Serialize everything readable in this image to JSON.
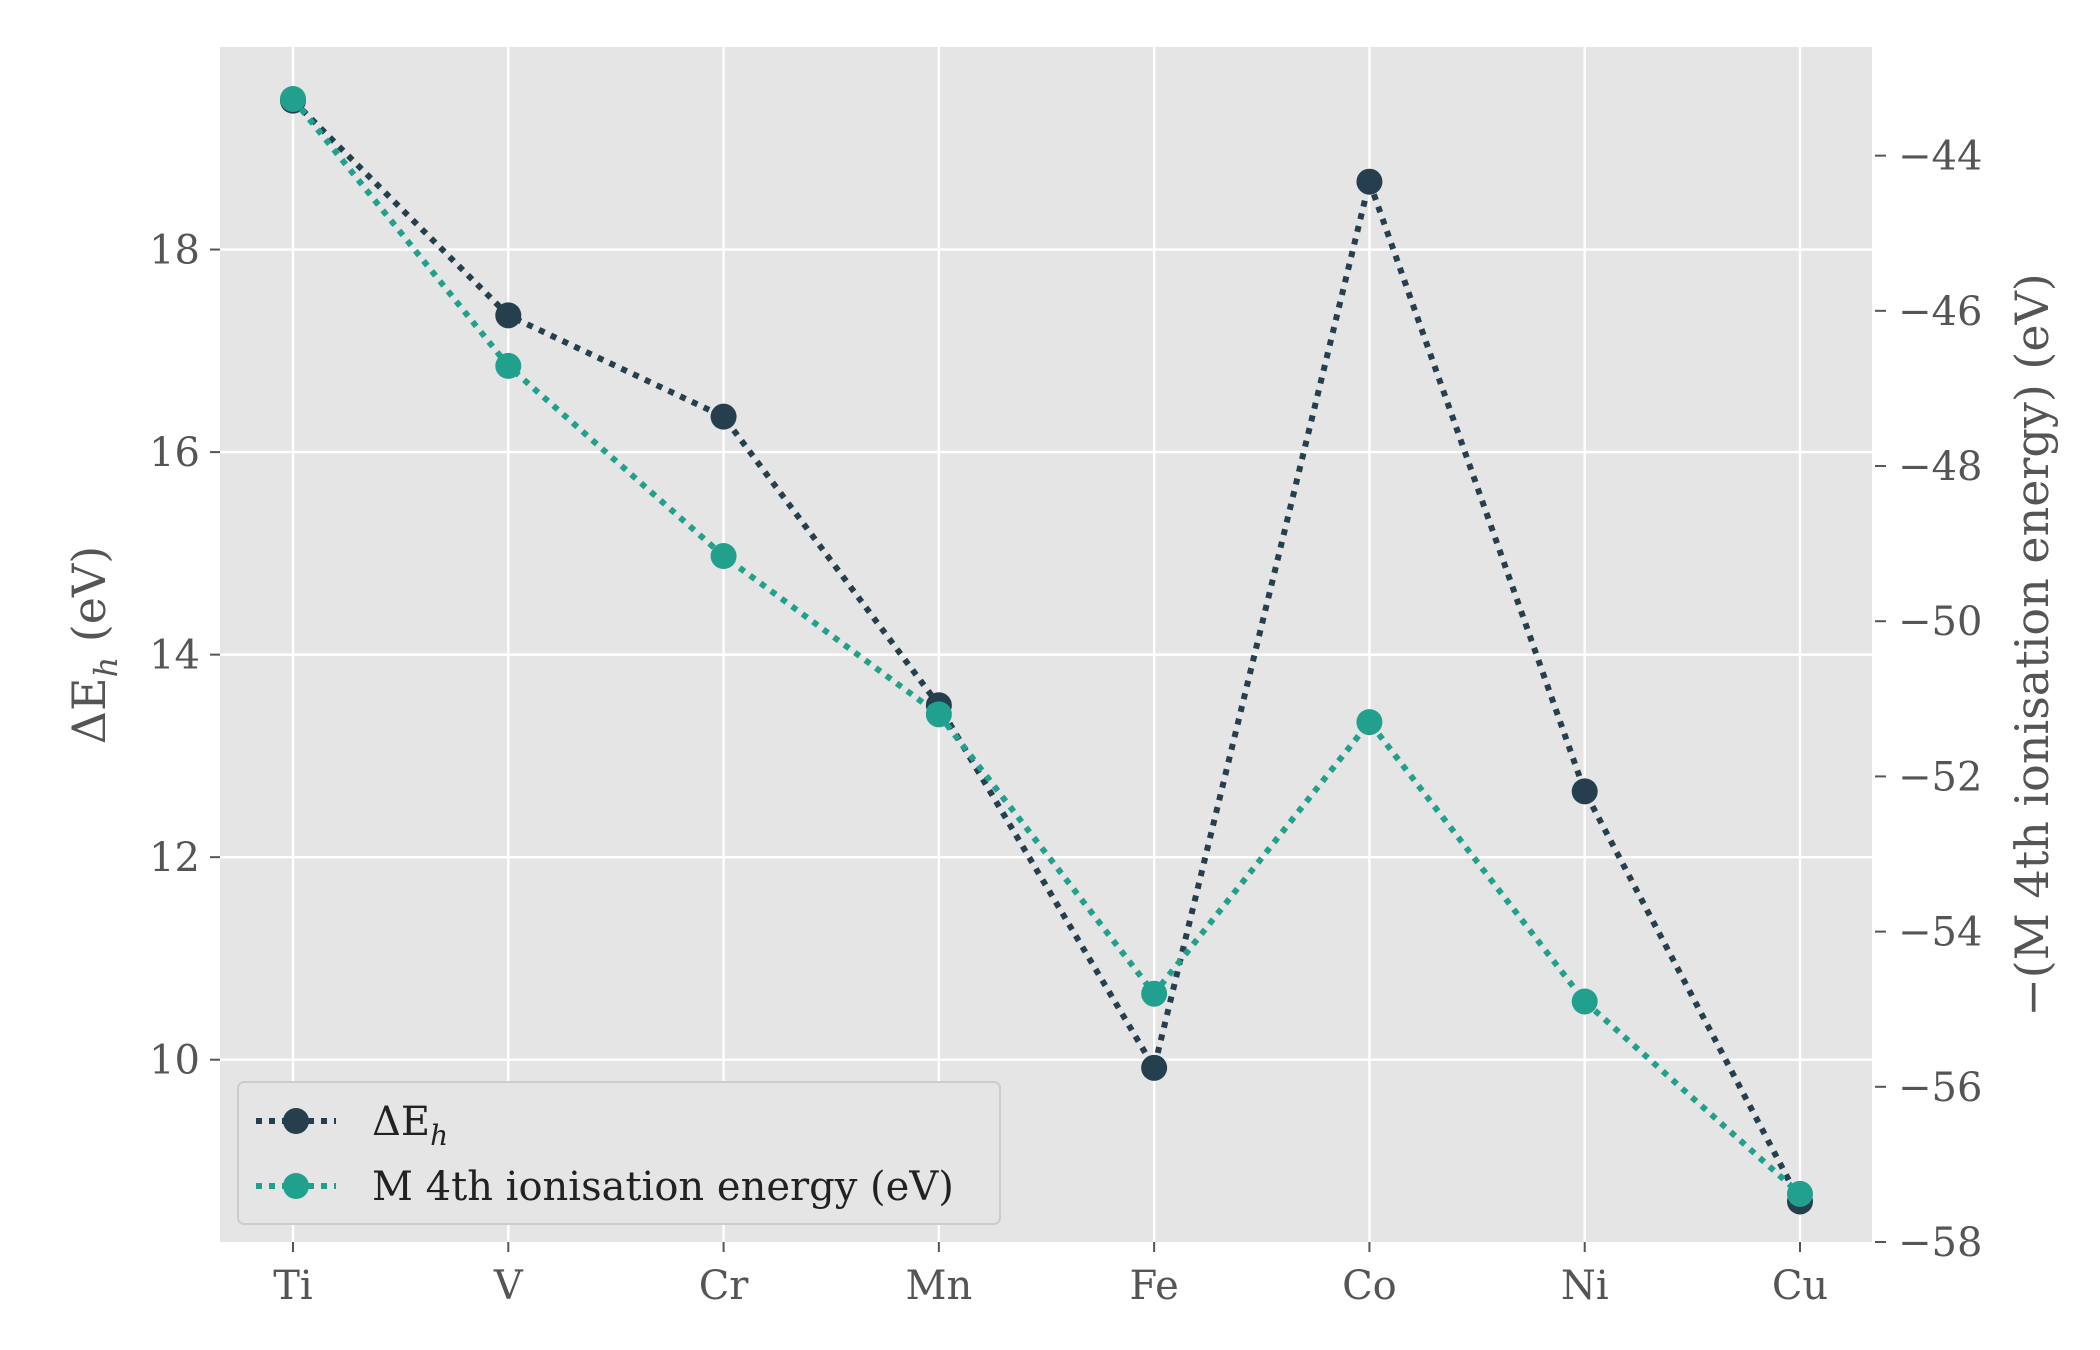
{
  "chart_data": {
    "type": "line",
    "categories": [
      "Ti",
      "V",
      "Cr",
      "Mn",
      "Fe",
      "Co",
      "Ni",
      "Cu"
    ],
    "series": [
      {
        "name": "ΔE_h",
        "name_main": "ΔE",
        "name_sub": "h",
        "axis": "left",
        "color": "#263F4F",
        "values": [
          19.47,
          17.35,
          16.35,
          13.5,
          9.92,
          18.67,
          12.65,
          8.6
        ]
      },
      {
        "name": "M 4th ionisation energy (eV)",
        "axis": "right",
        "color": "#22A08E",
        "values": [
          -43.27,
          -46.71,
          -49.16,
          -51.2,
          -54.8,
          -51.3,
          -54.9,
          -57.38
        ]
      }
    ],
    "ylabel": "ΔE_h (eV)",
    "ylabel_main": "ΔE",
    "ylabel_sub": "h",
    "ylabel_unit": " (eV)",
    "y2label": "−(M 4th ionisation energy) (eV)",
    "ylim": [
      8.2,
      20.0
    ],
    "y2lim": [
      -58.0,
      -42.6
    ],
    "yticks": [
      10,
      12,
      14,
      16,
      18
    ],
    "y2ticks": [
      -44,
      -46,
      -48,
      -50,
      -52,
      -54,
      -56,
      -58
    ],
    "grid": true,
    "legend": "lower-left"
  }
}
